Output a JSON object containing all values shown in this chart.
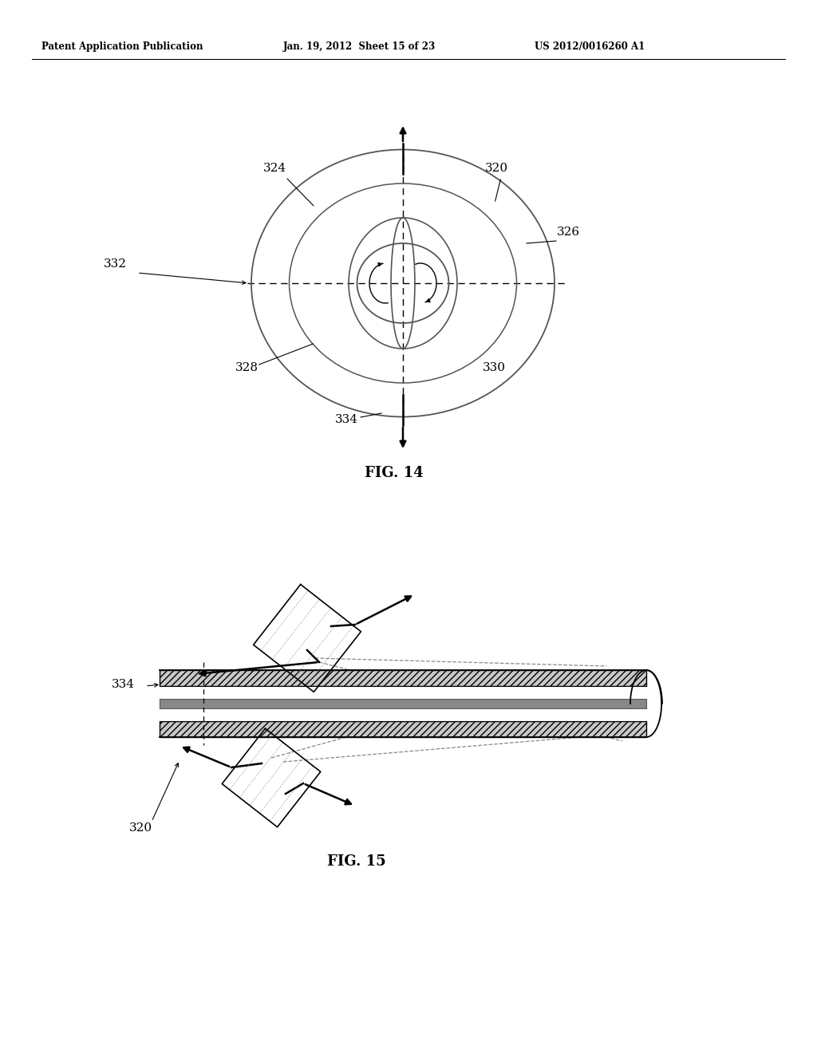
{
  "header_left": "Patent Application Publication",
  "header_mid": "Jan. 19, 2012  Sheet 15 of 23",
  "header_right": "US 2012/0016260 A1",
  "fig14_label": "FIG. 14",
  "fig15_label": "FIG. 15",
  "bg_color": "#ffffff",
  "line_color": "#000000",
  "gray_color": "#888888"
}
